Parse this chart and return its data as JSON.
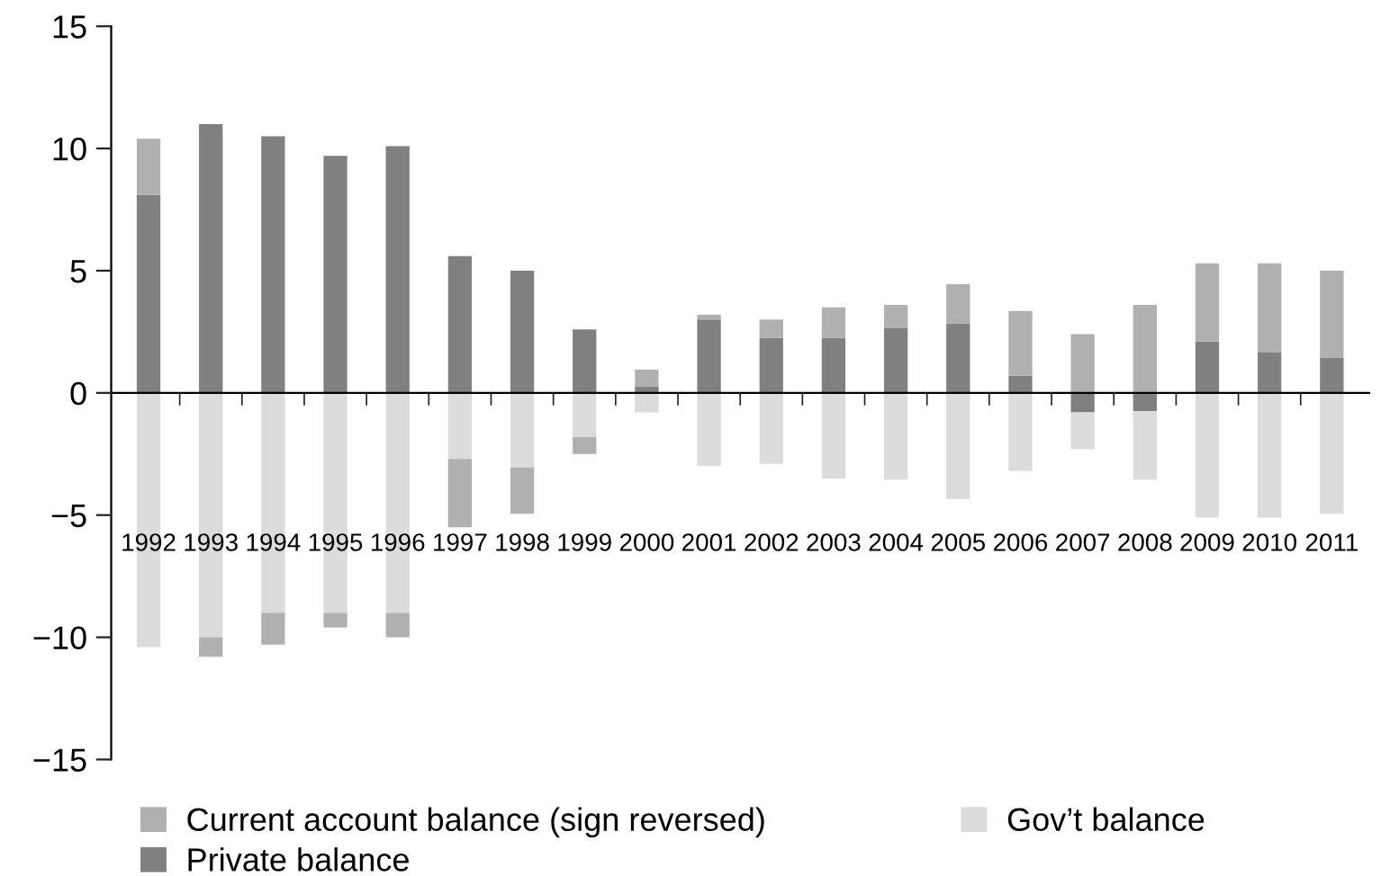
{
  "chart_data": {
    "type": "bar",
    "stacked": true,
    "categories": [
      "1992",
      "1993",
      "1994",
      "1995",
      "1996",
      "1997",
      "1998",
      "1999",
      "2000",
      "2001",
      "2002",
      "2003",
      "2004",
      "2005",
      "2006",
      "2007",
      "2008",
      "2009",
      "2010",
      "2011"
    ],
    "series": [
      {
        "name": "Private balance",
        "color": "#808080",
        "values": [
          8.1,
          11.0,
          10.5,
          9.7,
          10.1,
          5.6,
          5.0,
          2.6,
          0.25,
          3.0,
          2.25,
          2.25,
          2.65,
          2.85,
          0.7,
          -0.8,
          -0.75,
          2.1,
          1.65,
          1.45
        ]
      },
      {
        "name": "Gov’t balance",
        "color": "#dcdcdc",
        "values": [
          -10.4,
          -10.0,
          -9.0,
          -9.0,
          -9.0,
          -2.7,
          -3.05,
          -1.8,
          -0.8,
          -3.0,
          -2.9,
          -3.5,
          -3.55,
          -4.35,
          -3.2,
          -1.5,
          -2.8,
          -5.1,
          -5.1,
          -4.95
        ]
      },
      {
        "name": "Current account balance (sign reversed)",
        "color": "#b0b0b0",
        "values": [
          2.3,
          -0.8,
          -1.3,
          -0.6,
          -1.0,
          -2.8,
          -1.9,
          -0.7,
          0.7,
          0.2,
          0.75,
          1.25,
          0.95,
          1.6,
          2.65,
          2.4,
          3.6,
          3.2,
          3.65,
          3.55
        ]
      }
    ],
    "ylim": [
      -15,
      15
    ],
    "yticks": [
      {
        "value": -15,
        "label": "−15"
      },
      {
        "value": -10,
        "label": "−10"
      },
      {
        "value": -5,
        "label": "−5"
      },
      0,
      5,
      10,
      15
    ],
    "legend": "bottom"
  }
}
